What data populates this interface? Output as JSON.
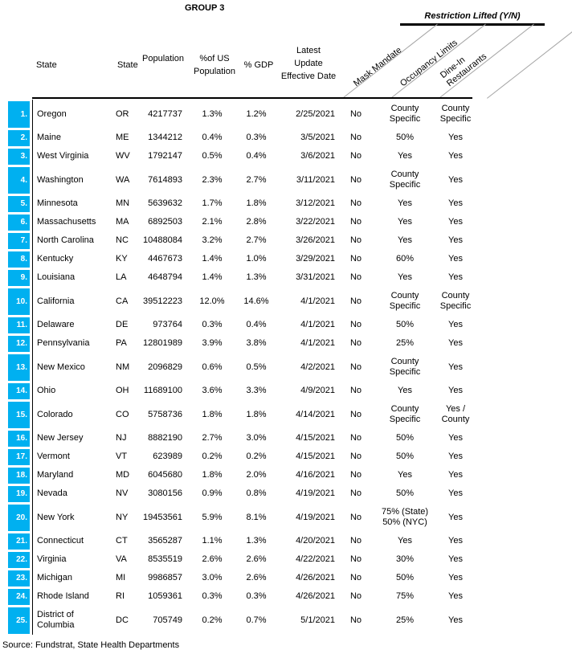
{
  "title": "GROUP 3",
  "restriction_group_header": "Restriction Lifted (Y/N)",
  "columns": {
    "state": "State",
    "state_abbr": "State",
    "population": "Population",
    "pct_us_population": "%of US Population",
    "pct_gdp": "% GDP",
    "latest_update_lines": [
      "Latest",
      "Update",
      "Effective Date"
    ],
    "mask_mandate": "Mask Mandate",
    "occupancy_limits": "Occupancy Limits",
    "dine_in_lines": [
      "Dine-In",
      "Restaurants"
    ]
  },
  "rows": [
    {
      "n": "1.",
      "state": "Oregon",
      "abbr": "OR",
      "population": "4217737",
      "pct_us_population": "1.3%",
      "pct_gdp": "1.2%",
      "date": "2/25/2021",
      "mask_mandate": "No",
      "occupancy_limits": "County Specific",
      "dine_in": "County Specific"
    },
    {
      "n": "2.",
      "state": "Maine",
      "abbr": "ME",
      "population": "1344212",
      "pct_us_population": "0.4%",
      "pct_gdp": "0.3%",
      "date": "3/5/2021",
      "mask_mandate": "No",
      "occupancy_limits": "50%",
      "dine_in": "Yes"
    },
    {
      "n": "3.",
      "state": "West Virginia",
      "abbr": "WV",
      "population": "1792147",
      "pct_us_population": "0.5%",
      "pct_gdp": "0.4%",
      "date": "3/6/2021",
      "mask_mandate": "No",
      "occupancy_limits": "Yes",
      "dine_in": "Yes"
    },
    {
      "n": "4.",
      "state": "Washington",
      "abbr": "WA",
      "population": "7614893",
      "pct_us_population": "2.3%",
      "pct_gdp": "2.7%",
      "date": "3/11/2021",
      "mask_mandate": "No",
      "occupancy_limits": "County Specific",
      "dine_in": "Yes"
    },
    {
      "n": "5.",
      "state": "Minnesota",
      "abbr": "MN",
      "population": "5639632",
      "pct_us_population": "1.7%",
      "pct_gdp": "1.8%",
      "date": "3/12/2021",
      "mask_mandate": "No",
      "occupancy_limits": "Yes",
      "dine_in": "Yes"
    },
    {
      "n": "6.",
      "state": "Massachusetts",
      "abbr": "MA",
      "population": "6892503",
      "pct_us_population": "2.1%",
      "pct_gdp": "2.8%",
      "date": "3/22/2021",
      "mask_mandate": "No",
      "occupancy_limits": "Yes",
      "dine_in": "Yes"
    },
    {
      "n": "7.",
      "state": "North Carolina",
      "abbr": "NC",
      "population": "10488084",
      "pct_us_population": "3.2%",
      "pct_gdp": "2.7%",
      "date": "3/26/2021",
      "mask_mandate": "No",
      "occupancy_limits": "Yes",
      "dine_in": "Yes"
    },
    {
      "n": "8.",
      "state": "Kentucky",
      "abbr": "KY",
      "population": "4467673",
      "pct_us_population": "1.4%",
      "pct_gdp": "1.0%",
      "date": "3/29/2021",
      "mask_mandate": "No",
      "occupancy_limits": "60%",
      "dine_in": "Yes"
    },
    {
      "n": "9.",
      "state": "Louisiana",
      "abbr": "LA",
      "population": "4648794",
      "pct_us_population": "1.4%",
      "pct_gdp": "1.3%",
      "date": "3/31/2021",
      "mask_mandate": "No",
      "occupancy_limits": "Yes",
      "dine_in": "Yes"
    },
    {
      "n": "10.",
      "state": "California",
      "abbr": "CA",
      "population": "39512223",
      "pct_us_population": "12.0%",
      "pct_gdp": "14.6%",
      "date": "4/1/2021",
      "mask_mandate": "No",
      "occupancy_limits": "County Specific",
      "dine_in": "County Specific"
    },
    {
      "n": "11.",
      "state": "Delaware",
      "abbr": "DE",
      "population": "973764",
      "pct_us_population": "0.3%",
      "pct_gdp": "0.4%",
      "date": "4/1/2021",
      "mask_mandate": "No",
      "occupancy_limits": "50%",
      "dine_in": "Yes"
    },
    {
      "n": "12.",
      "state": "Pennsylvania",
      "abbr": "PA",
      "population": "12801989",
      "pct_us_population": "3.9%",
      "pct_gdp": "3.8%",
      "date": "4/1/2021",
      "mask_mandate": "No",
      "occupancy_limits": "25%",
      "dine_in": "Yes"
    },
    {
      "n": "13.",
      "state": "New Mexico",
      "abbr": "NM",
      "population": "2096829",
      "pct_us_population": "0.6%",
      "pct_gdp": "0.5%",
      "date": "4/2/2021",
      "mask_mandate": "No",
      "occupancy_limits": "County Specific",
      "dine_in": "Yes"
    },
    {
      "n": "14.",
      "state": "Ohio",
      "abbr": "OH",
      "population": "11689100",
      "pct_us_population": "3.6%",
      "pct_gdp": "3.3%",
      "date": "4/9/2021",
      "mask_mandate": "No",
      "occupancy_limits": "Yes",
      "dine_in": "Yes"
    },
    {
      "n": "15.",
      "state": "Colorado",
      "abbr": "CO",
      "population": "5758736",
      "pct_us_population": "1.8%",
      "pct_gdp": "1.8%",
      "date": "4/14/2021",
      "mask_mandate": "No",
      "occupancy_limits": "County Specific",
      "dine_in": "Yes / County"
    },
    {
      "n": "16.",
      "state": "New Jersey",
      "abbr": "NJ",
      "population": "8882190",
      "pct_us_population": "2.7%",
      "pct_gdp": "3.0%",
      "date": "4/15/2021",
      "mask_mandate": "No",
      "occupancy_limits": "50%",
      "dine_in": "Yes"
    },
    {
      "n": "17.",
      "state": "Vermont",
      "abbr": "VT",
      "population": "623989",
      "pct_us_population": "0.2%",
      "pct_gdp": "0.2%",
      "date": "4/15/2021",
      "mask_mandate": "No",
      "occupancy_limits": "50%",
      "dine_in": "Yes"
    },
    {
      "n": "18.",
      "state": "Maryland",
      "abbr": "MD",
      "population": "6045680",
      "pct_us_population": "1.8%",
      "pct_gdp": "2.0%",
      "date": "4/16/2021",
      "mask_mandate": "No",
      "occupancy_limits": "Yes",
      "dine_in": "Yes"
    },
    {
      "n": "19.",
      "state": "Nevada",
      "abbr": "NV",
      "population": "3080156",
      "pct_us_population": "0.9%",
      "pct_gdp": "0.8%",
      "date": "4/19/2021",
      "mask_mandate": "No",
      "occupancy_limits": "50%",
      "dine_in": "Yes"
    },
    {
      "n": "20.",
      "state": "New York",
      "abbr": "NY",
      "population": "19453561",
      "pct_us_population": "5.9%",
      "pct_gdp": "8.1%",
      "date": "4/19/2021",
      "mask_mandate": "No",
      "occupancy_limits": "75% (State) 50% (NYC)",
      "dine_in": "Yes"
    },
    {
      "n": "21.",
      "state": "Connecticut",
      "abbr": "CT",
      "population": "3565287",
      "pct_us_population": "1.1%",
      "pct_gdp": "1.3%",
      "date": "4/20/2021",
      "mask_mandate": "No",
      "occupancy_limits": "Yes",
      "dine_in": "Yes"
    },
    {
      "n": "22.",
      "state": "Virginia",
      "abbr": "VA",
      "population": "8535519",
      "pct_us_population": "2.6%",
      "pct_gdp": "2.6%",
      "date": "4/22/2021",
      "mask_mandate": "No",
      "occupancy_limits": "30%",
      "dine_in": "Yes"
    },
    {
      "n": "23.",
      "state": "Michigan",
      "abbr": "MI",
      "population": "9986857",
      "pct_us_population": "3.0%",
      "pct_gdp": "2.6%",
      "date": "4/26/2021",
      "mask_mandate": "No",
      "occupancy_limits": "50%",
      "dine_in": "Yes"
    },
    {
      "n": "24.",
      "state": "Rhode Island",
      "abbr": "RI",
      "population": "1059361",
      "pct_us_population": "0.3%",
      "pct_gdp": "0.3%",
      "date": "4/26/2021",
      "mask_mandate": "No",
      "occupancy_limits": "75%",
      "dine_in": "Yes"
    },
    {
      "n": "25.",
      "state": "District of Columbia",
      "abbr": "DC",
      "population": "705749",
      "pct_us_population": "0.2%",
      "pct_gdp": "0.7%",
      "date": "5/1/2021",
      "mask_mandate": "No",
      "occupancy_limits": "25%",
      "dine_in": "Yes"
    }
  ],
  "source": "Source: Fundstrat, State Health Departments",
  "colors": {
    "row_badge": "#00B0F0",
    "text": "#000000",
    "diagonal_line": "#a6a6a6"
  }
}
